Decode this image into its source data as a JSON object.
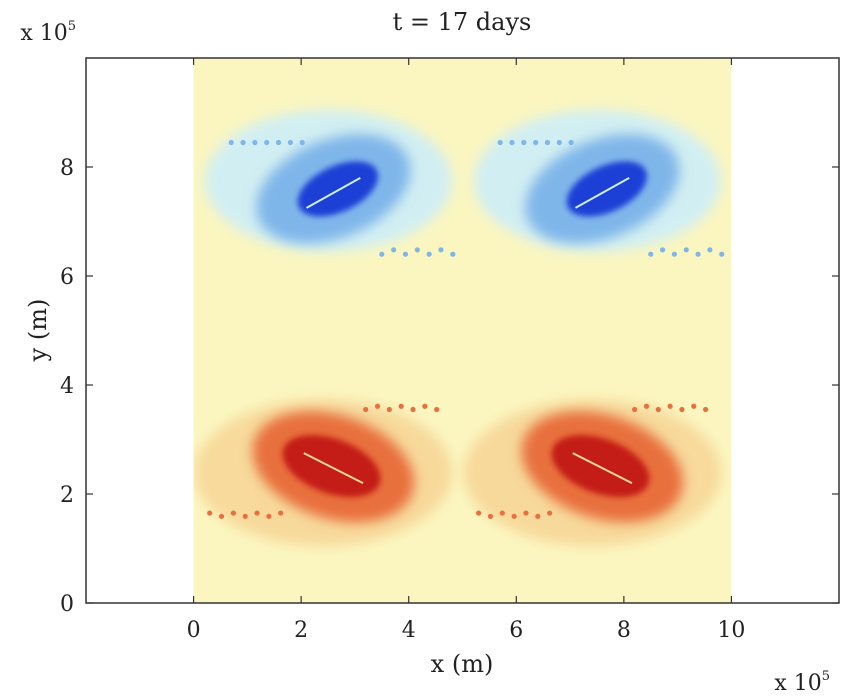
{
  "chart_data": {
    "type": "heatmap",
    "title": "t = 17 days",
    "xlabel": "x (m)",
    "ylabel": "y (m)",
    "x_multiplier": "x 10",
    "x_multiplier_exp": "5",
    "y_multiplier": "x 10",
    "y_multiplier_exp": "5",
    "xlim": [
      -2,
      12
    ],
    "ylim": [
      0,
      10
    ],
    "xticks": [
      0,
      2,
      4,
      6,
      8,
      10
    ],
    "yticks": [
      0,
      2,
      4,
      6,
      8
    ],
    "field_extent": {
      "x": [
        0,
        10
      ],
      "y": [
        0,
        10
      ]
    },
    "grid": false,
    "colormap": [
      "#1f3fd6",
      "#7fb6ea",
      "#cfeef5",
      "#fbf6c0",
      "#f7d89a",
      "#e8703e",
      "#c41a14"
    ],
    "features": [
      {
        "label": "negative vortex core",
        "x": 2.6,
        "y": 7.6,
        "sign": "negative"
      },
      {
        "label": "negative vortex core",
        "x": 7.6,
        "y": 7.6,
        "sign": "negative"
      },
      {
        "label": "positive vortex core",
        "x": 2.6,
        "y": 2.5,
        "sign": "positive"
      },
      {
        "label": "positive vortex core",
        "x": 7.6,
        "y": 2.5,
        "sign": "positive"
      }
    ]
  }
}
